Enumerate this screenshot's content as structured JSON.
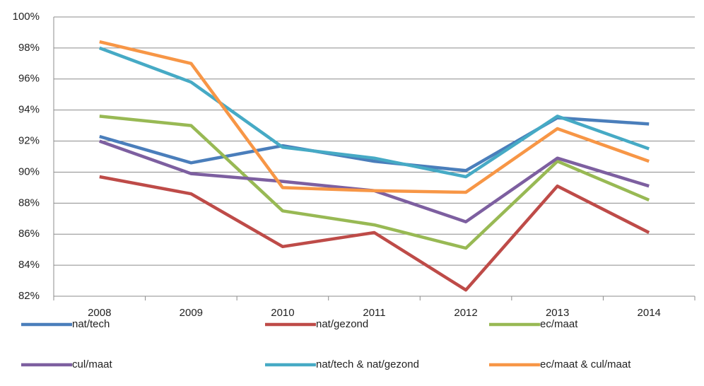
{
  "chart_data": {
    "type": "line",
    "categories": [
      "2008",
      "2009",
      "2010",
      "2011",
      "2012",
      "2013",
      "2014"
    ],
    "series": [
      {
        "name": "nat/tech",
        "color": "#4a7ebb",
        "values": [
          92.3,
          90.6,
          91.7,
          90.7,
          90.1,
          93.5,
          93.1
        ]
      },
      {
        "name": "nat/gezond",
        "color": "#be4b48",
        "values": [
          89.7,
          88.6,
          85.2,
          86.1,
          82.4,
          89.1,
          86.1
        ]
      },
      {
        "name": "ec/maat",
        "color": "#98b954",
        "values": [
          93.6,
          93.0,
          87.5,
          86.6,
          85.1,
          90.7,
          88.2
        ]
      },
      {
        "name": "cul/maat",
        "color": "#7d5fa0",
        "values": [
          92.0,
          89.9,
          89.4,
          88.8,
          86.8,
          90.9,
          89.1
        ]
      },
      {
        "name": "nat/tech & nat/gezond",
        "color": "#46aac5",
        "values": [
          98.0,
          95.8,
          91.6,
          90.9,
          89.7,
          93.6,
          91.5
        ]
      },
      {
        "name": "ec/maat & cul/maat",
        "color": "#f79646",
        "values": [
          98.4,
          97.0,
          89.0,
          88.8,
          88.7,
          92.8,
          90.7
        ]
      }
    ],
    "ylim": [
      82,
      100
    ],
    "yticks": [
      {
        "value": 82,
        "label": "82%"
      },
      {
        "value": 84,
        "label": "84%"
      },
      {
        "value": 86,
        "label": "86%"
      },
      {
        "value": 88,
        "label": "88%"
      },
      {
        "value": 90,
        "label": "90%"
      },
      {
        "value": 92,
        "label": "92%"
      },
      {
        "value": 94,
        "label": "94%"
      },
      {
        "value": 96,
        "label": "96%"
      },
      {
        "value": 98,
        "label": "98%"
      },
      {
        "value": 100,
        "label": "100%"
      }
    ],
    "grid": true,
    "legend": "bottom"
  }
}
